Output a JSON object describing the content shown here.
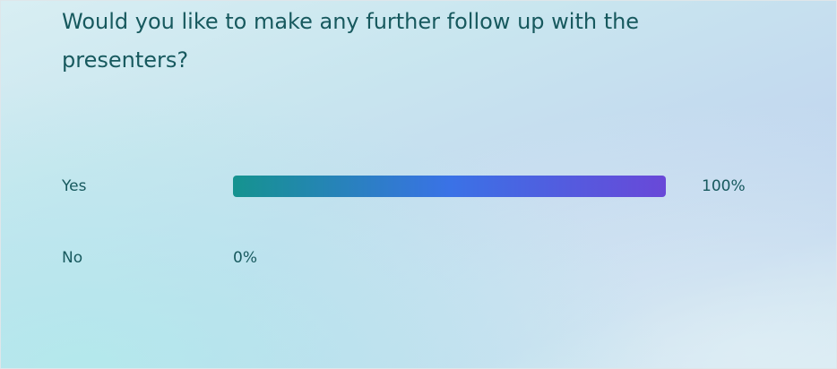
{
  "chart_data": {
    "type": "bar",
    "orientation": "horizontal",
    "title": "Would you like to make any further follow up with the presenters?",
    "categories": [
      "Yes",
      "No"
    ],
    "values": [
      100,
      0
    ],
    "value_labels": [
      "100%",
      "0%"
    ],
    "xlim": [
      0,
      100
    ],
    "colors": [
      "#15938f",
      "#3a72e6",
      "#6948d8"
    ]
  }
}
